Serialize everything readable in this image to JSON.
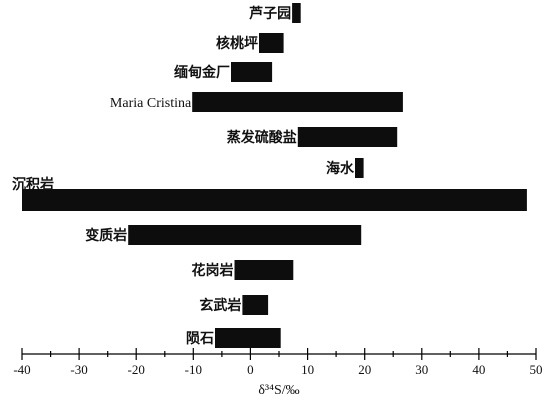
{
  "chart_data": {
    "type": "bar",
    "orientation": "horizontal-range",
    "title": "",
    "xlabel": "δ³⁴S/‰",
    "xlim": [
      -40,
      50
    ],
    "xticks": [
      -40,
      -30,
      -20,
      -10,
      0,
      10,
      20,
      30,
      40,
      50
    ],
    "categories": [
      "芦子园",
      "核桃坪",
      "缅甸金厂",
      "Maria Cristina",
      "蒸发硫酸盐",
      "海水",
      "沉积岩",
      "变质岩",
      "花岗岩",
      "玄武岩",
      "陨石"
    ],
    "ranges": [
      [
        7.3,
        8.8
      ],
      [
        1.5,
        5.8
      ],
      [
        -3.4,
        3.8
      ],
      [
        -10.2,
        26.7
      ],
      [
        8.3,
        25.7
      ],
      [
        18.3,
        19.8
      ],
      [
        -40,
        48.4
      ],
      [
        -21.4,
        19.4
      ],
      [
        -2.8,
        7.5
      ],
      [
        -1.4,
        3.1
      ],
      [
        -6.2,
        5.3
      ]
    ],
    "bar_color": "#0d0d0d"
  }
}
